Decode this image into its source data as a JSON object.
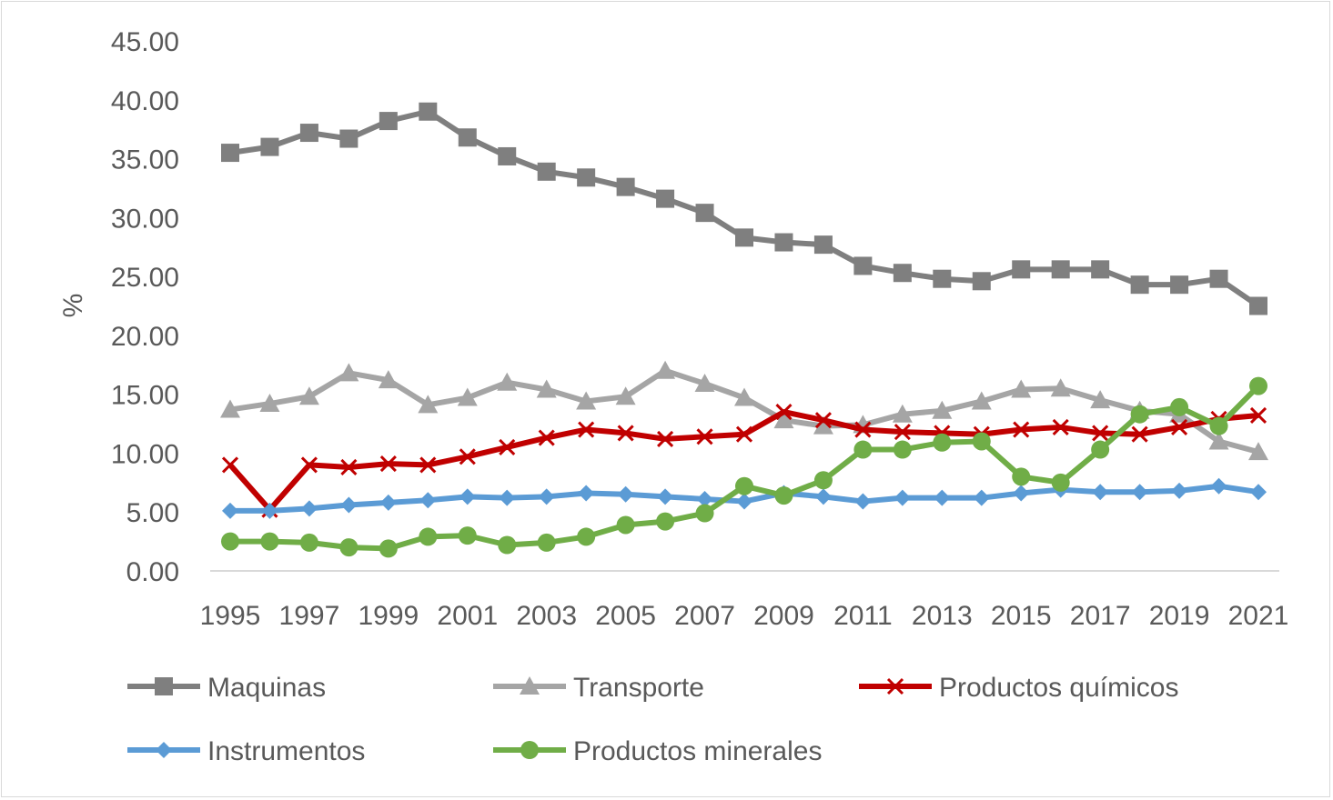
{
  "chart_data": {
    "type": "line",
    "title": "",
    "xlabel": "",
    "ylabel": "%",
    "ylim": [
      0,
      45
    ],
    "yticks": [
      "0.00",
      "5.00",
      "10.00",
      "15.00",
      "20.00",
      "25.00",
      "30.00",
      "35.00",
      "40.00",
      "45.00"
    ],
    "xtick_labels": [
      "1995",
      "1997",
      "1999",
      "2001",
      "2003",
      "2005",
      "2007",
      "2009",
      "2011",
      "2013",
      "2015",
      "2017",
      "2019",
      "2021"
    ],
    "x": [
      1995,
      1996,
      1997,
      1998,
      1999,
      2000,
      2001,
      2002,
      2003,
      2004,
      2005,
      2006,
      2007,
      2008,
      2009,
      2010,
      2011,
      2012,
      2013,
      2014,
      2015,
      2016,
      2017,
      2018,
      2019,
      2020,
      2021
    ],
    "grid": false,
    "legend_position": "bottom",
    "series": [
      {
        "name": "Maquinas",
        "color": "#7f7f7f",
        "marker": "square",
        "values": [
          35.5,
          36.0,
          37.2,
          36.7,
          38.2,
          39.0,
          36.8,
          35.2,
          33.9,
          33.4,
          32.6,
          31.6,
          30.4,
          28.3,
          27.9,
          27.7,
          25.9,
          25.3,
          24.8,
          24.6,
          25.6,
          25.6,
          25.6,
          24.3,
          24.3,
          24.8,
          22.5
        ]
      },
      {
        "name": "Transporte",
        "color": "#a5a5a5",
        "marker": "triangle",
        "values": [
          13.7,
          14.2,
          14.8,
          16.8,
          16.2,
          14.1,
          14.7,
          16.0,
          15.4,
          14.4,
          14.8,
          17.0,
          15.9,
          14.7,
          12.8,
          12.3,
          12.4,
          13.3,
          13.6,
          14.4,
          15.4,
          15.5,
          14.5,
          13.6,
          13.3,
          11.0,
          10.1
        ]
      },
      {
        "name": "Productos químicos",
        "color": "#c00000",
        "marker": "x",
        "values": [
          9.0,
          5.2,
          9.0,
          8.8,
          9.1,
          9.0,
          9.7,
          10.5,
          11.3,
          12.0,
          11.7,
          11.2,
          11.4,
          11.6,
          13.5,
          12.8,
          12.0,
          11.8,
          11.7,
          11.6,
          12.0,
          12.2,
          11.7,
          11.6,
          12.2,
          12.9,
          13.2
        ]
      },
      {
        "name": "Instrumentos",
        "color": "#5b9bd5",
        "marker": "diamond",
        "values": [
          5.1,
          5.1,
          5.3,
          5.6,
          5.8,
          6.0,
          6.3,
          6.2,
          6.3,
          6.6,
          6.5,
          6.3,
          6.1,
          5.9,
          6.6,
          6.3,
          5.9,
          6.2,
          6.2,
          6.2,
          6.6,
          6.9,
          6.7,
          6.7,
          6.8,
          7.2,
          6.7
        ]
      },
      {
        "name": "Productos minerales",
        "color": "#70ad47",
        "marker": "circle",
        "values": [
          2.5,
          2.5,
          2.4,
          2.0,
          1.9,
          2.9,
          3.0,
          2.2,
          2.4,
          2.9,
          3.9,
          4.2,
          4.9,
          7.2,
          6.4,
          7.7,
          10.3,
          10.3,
          10.9,
          11.0,
          8.0,
          7.5,
          10.3,
          13.3,
          13.9,
          12.3,
          15.7
        ]
      }
    ]
  }
}
